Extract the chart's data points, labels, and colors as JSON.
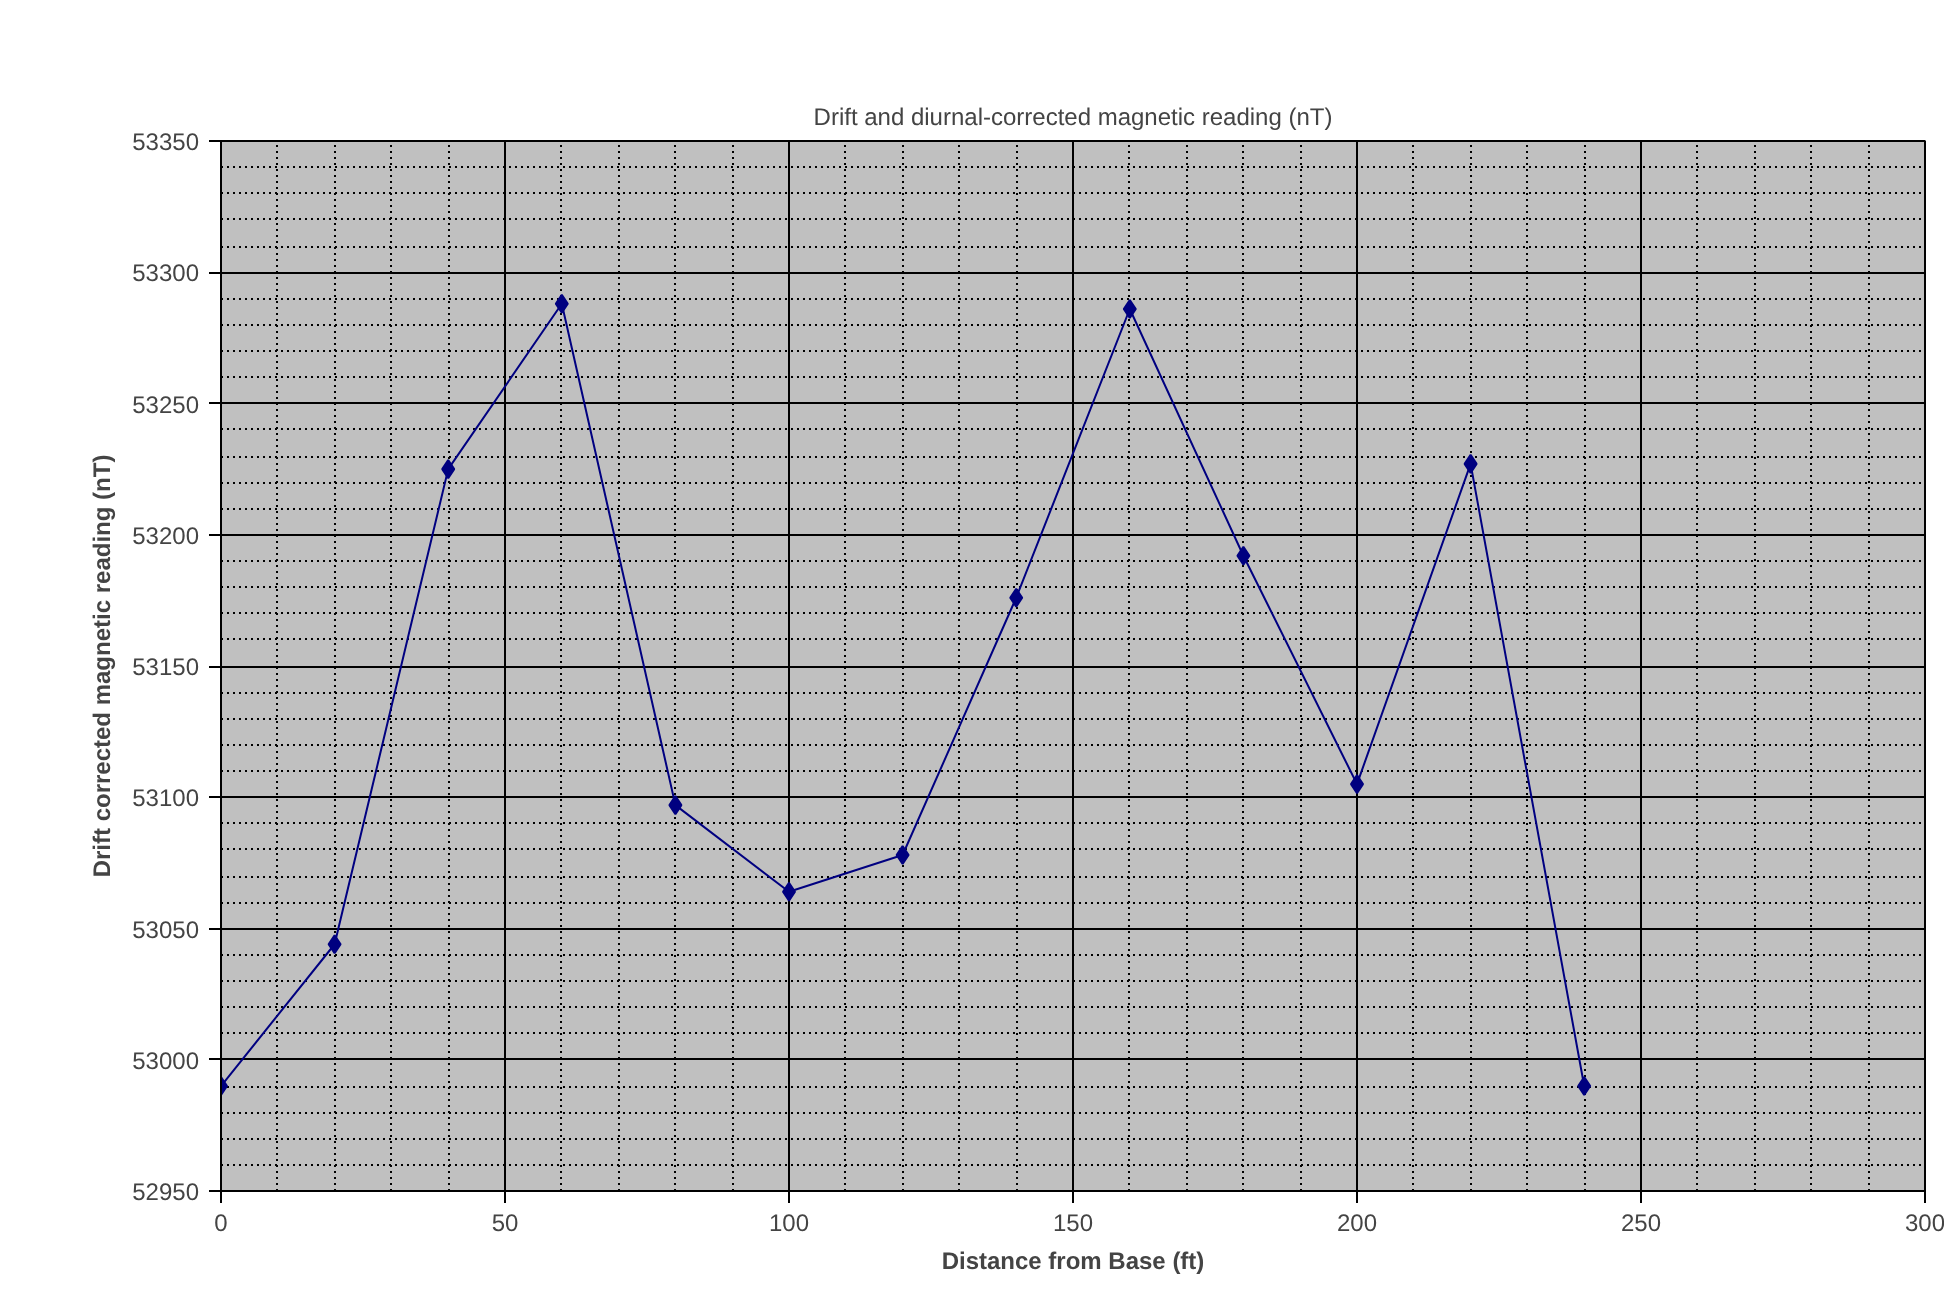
{
  "chart_data": {
    "type": "line",
    "title": "Drift and diurnal-corrected magnetic reading (nT)",
    "xlabel": "Distance from Base (ft)",
    "ylabel": "Drift corrected magnetic reading (nT)",
    "x": [
      0,
      20,
      40,
      60,
      80,
      100,
      120,
      140,
      160,
      180,
      200,
      220,
      240
    ],
    "series": [
      {
        "color": "#000080",
        "values": [
          52990,
          53044,
          53225,
          53288,
          53097,
          53064,
          53078,
          53176,
          53286,
          53192,
          53105,
          53227,
          52990
        ]
      }
    ],
    "xlim": [
      0,
      300
    ],
    "xticks": [
      0,
      50,
      100,
      150,
      200,
      250,
      300
    ],
    "ylim": [
      52950,
      53350
    ],
    "yticks": [
      52950,
      53000,
      53050,
      53100,
      53150,
      53200,
      53250,
      53300,
      53350
    ],
    "grid": true,
    "marker": "diamond",
    "line_style": "solid"
  }
}
